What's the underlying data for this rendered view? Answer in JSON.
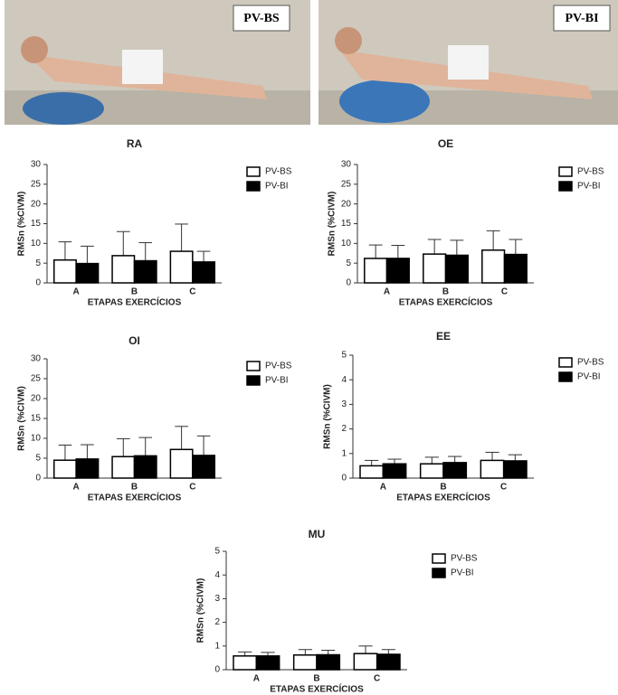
{
  "photos": [
    {
      "label": "PV-BS"
    },
    {
      "label": "PV-BI"
    }
  ],
  "chart_data": [
    {
      "type": "bar",
      "title": "RA",
      "y_label": "RMSn (%CIVM)",
      "x_label": "ETAPAS EXERCÍCIOS",
      "categories": [
        "A",
        "B",
        "C"
      ],
      "ylim": [
        0,
        30
      ],
      "yticks": [
        0,
        5,
        10,
        15,
        20,
        25,
        30
      ],
      "legend": "upper right",
      "series": [
        {
          "name": "PV-BS",
          "color": "#ffffff",
          "values": [
            5.8,
            6.9,
            8.0
          ],
          "errors": [
            4.6,
            6.1,
            6.9
          ]
        },
        {
          "name": "PV-BI",
          "color": "#000000",
          "values": [
            4.9,
            5.6,
            5.3
          ],
          "errors": [
            4.4,
            4.6,
            2.7
          ]
        }
      ]
    },
    {
      "type": "bar",
      "title": "OE",
      "y_label": "RMSn (%CIVM)",
      "x_label": "ETAPAS EXERCÍCIOS",
      "categories": [
        "A",
        "B",
        "C"
      ],
      "ylim": [
        0,
        30
      ],
      "yticks": [
        0,
        5,
        10,
        15,
        20,
        25,
        30
      ],
      "legend": "upper right",
      "series": [
        {
          "name": "PV-BS",
          "color": "#ffffff",
          "values": [
            6.2,
            7.3,
            8.3
          ],
          "errors": [
            3.4,
            3.7,
            4.9
          ]
        },
        {
          "name": "PV-BI",
          "color": "#000000",
          "values": [
            6.2,
            7.0,
            7.2
          ],
          "errors": [
            3.3,
            3.8,
            3.8
          ]
        }
      ]
    },
    {
      "type": "bar",
      "title": "OI",
      "y_label": "RMSn (%CIVM)",
      "x_label": "ETAPAS EXERCÍCIOS",
      "categories": [
        "A",
        "B",
        "C"
      ],
      "ylim": [
        0,
        30
      ],
      "yticks": [
        0,
        5,
        10,
        15,
        20,
        25,
        30
      ],
      "legend": "upper right",
      "series": [
        {
          "name": "PV-BS",
          "color": "#ffffff",
          "values": [
            4.5,
            5.4,
            7.2
          ],
          "errors": [
            3.8,
            4.5,
            5.8
          ]
        },
        {
          "name": "PV-BI",
          "color": "#000000",
          "values": [
            4.8,
            5.6,
            5.7
          ],
          "errors": [
            3.6,
            4.6,
            4.9
          ]
        }
      ]
    },
    {
      "type": "bar",
      "title": "EE",
      "y_label": "RMSn (%CIVM)",
      "x_label": "ETAPAS EXERCÍCIOS",
      "categories": [
        "A",
        "B",
        "C"
      ],
      "ylim": [
        0,
        5
      ],
      "yticks": [
        0,
        1,
        2,
        3,
        4,
        5
      ],
      "legend": "upper right",
      "series": [
        {
          "name": "PV-BS",
          "color": "#ffffff",
          "values": [
            0.5,
            0.58,
            0.72
          ],
          "errors": [
            0.22,
            0.27,
            0.33
          ]
        },
        {
          "name": "PV-BI",
          "color": "#000000",
          "values": [
            0.58,
            0.63,
            0.7
          ],
          "errors": [
            0.19,
            0.25,
            0.25
          ]
        }
      ]
    },
    {
      "type": "bar",
      "title": "MU",
      "y_label": "RMSn (%CIVM)",
      "x_label": "ETAPAS EXERCÍCIOS",
      "categories": [
        "A",
        "B",
        "C"
      ],
      "ylim": [
        0,
        5
      ],
      "yticks": [
        0,
        1,
        2,
        3,
        4,
        5
      ],
      "legend": "upper right",
      "series": [
        {
          "name": "PV-BS",
          "color": "#ffffff",
          "values": [
            0.58,
            0.62,
            0.68
          ],
          "errors": [
            0.17,
            0.23,
            0.32
          ]
        },
        {
          "name": "PV-BI",
          "color": "#000000",
          "values": [
            0.58,
            0.63,
            0.65
          ],
          "errors": [
            0.15,
            0.19,
            0.2
          ]
        }
      ]
    }
  ]
}
